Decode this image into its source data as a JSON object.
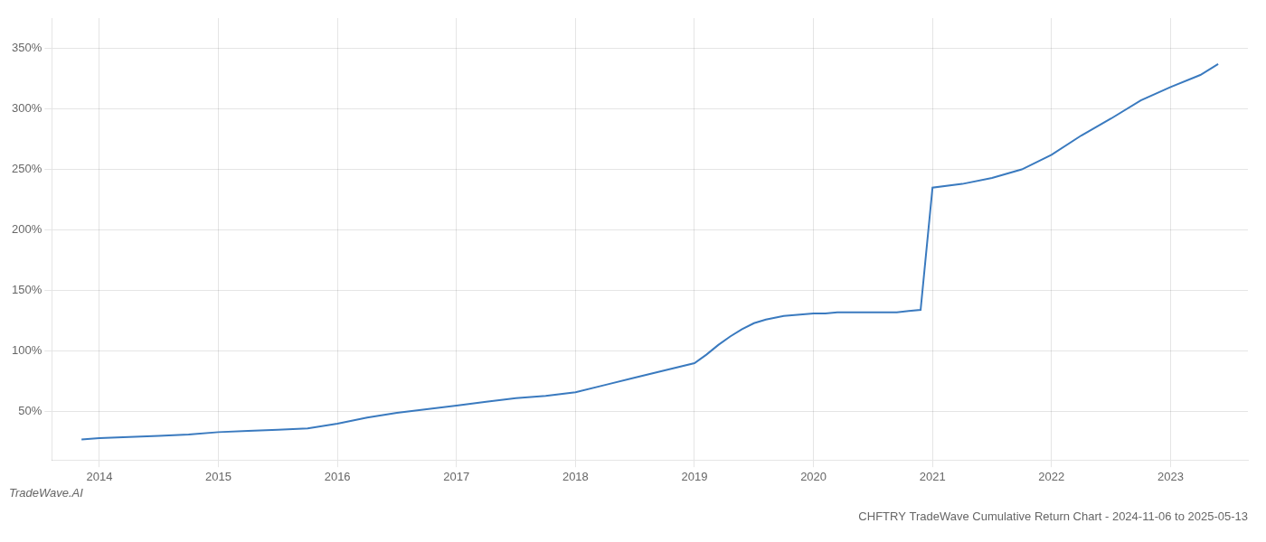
{
  "chart_data": {
    "type": "line",
    "title": "CHFTRY TradeWave Cumulative Return Chart - 2024-11-06 to 2025-05-13",
    "subtitle": "TradeWave.AI",
    "x": [
      2013.85,
      2014.0,
      2014.25,
      2014.5,
      2014.75,
      2015.0,
      2015.25,
      2015.5,
      2015.75,
      2016.0,
      2016.25,
      2016.5,
      2016.75,
      2017.0,
      2017.25,
      2017.5,
      2017.75,
      2018.0,
      2018.25,
      2018.5,
      2018.75,
      2019.0,
      2019.1,
      2019.2,
      2019.3,
      2019.4,
      2019.5,
      2019.6,
      2019.75,
      2020.0,
      2020.1,
      2020.2,
      2020.3,
      2020.4,
      2020.5,
      2020.6,
      2020.7,
      2020.8,
      2020.9,
      2021.0,
      2021.25,
      2021.5,
      2021.75,
      2022.0,
      2022.25,
      2022.5,
      2022.75,
      2023.0,
      2023.25,
      2023.4
    ],
    "values": [
      27,
      28,
      29,
      30,
      31,
      33,
      34,
      35,
      36,
      40,
      45,
      49,
      52,
      55,
      58,
      61,
      63,
      66,
      72,
      78,
      84,
      90,
      97,
      105,
      112,
      118,
      123,
      126,
      129,
      131,
      131,
      132,
      132,
      132,
      132,
      132,
      132,
      133,
      134,
      235,
      238,
      243,
      250,
      262,
      278,
      292,
      307,
      318,
      328,
      337
    ],
    "color": "#3a7abf",
    "xlim": [
      2013.6,
      2023.65
    ],
    "xticks": [
      2014,
      2015,
      2016,
      2017,
      2018,
      2019,
      2020,
      2021,
      2022,
      2023
    ],
    "ylim": [
      10,
      375
    ],
    "yticks": [
      {
        "value": 50,
        "label": "50%"
      },
      {
        "value": 100,
        "label": "100%"
      },
      {
        "value": 150,
        "label": "150%"
      },
      {
        "value": 200,
        "label": "200%"
      },
      {
        "value": 250,
        "label": "250%"
      },
      {
        "value": 300,
        "label": "300%"
      },
      {
        "value": 350,
        "label": "350%"
      }
    ],
    "grid": true
  }
}
